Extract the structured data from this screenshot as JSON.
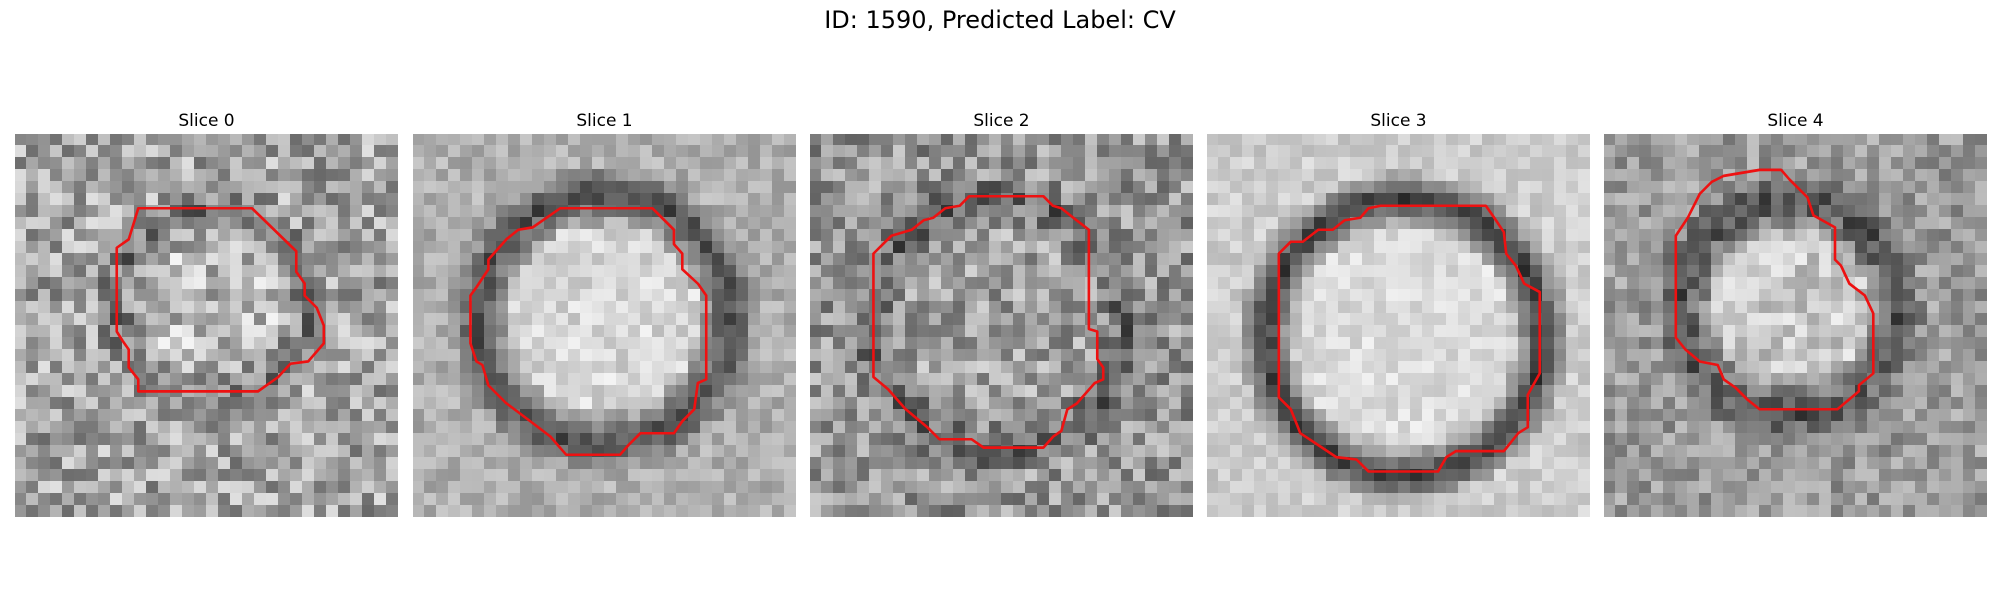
{
  "title": "ID: 1590, Predicted Label: CV",
  "contour_color": "#ee1111",
  "slices": [
    {
      "label": "Slice 0"
    },
    {
      "label": "Slice 1"
    },
    {
      "label": "Slice 2"
    },
    {
      "label": "Slice 3"
    },
    {
      "label": "Slice 4"
    }
  ]
}
